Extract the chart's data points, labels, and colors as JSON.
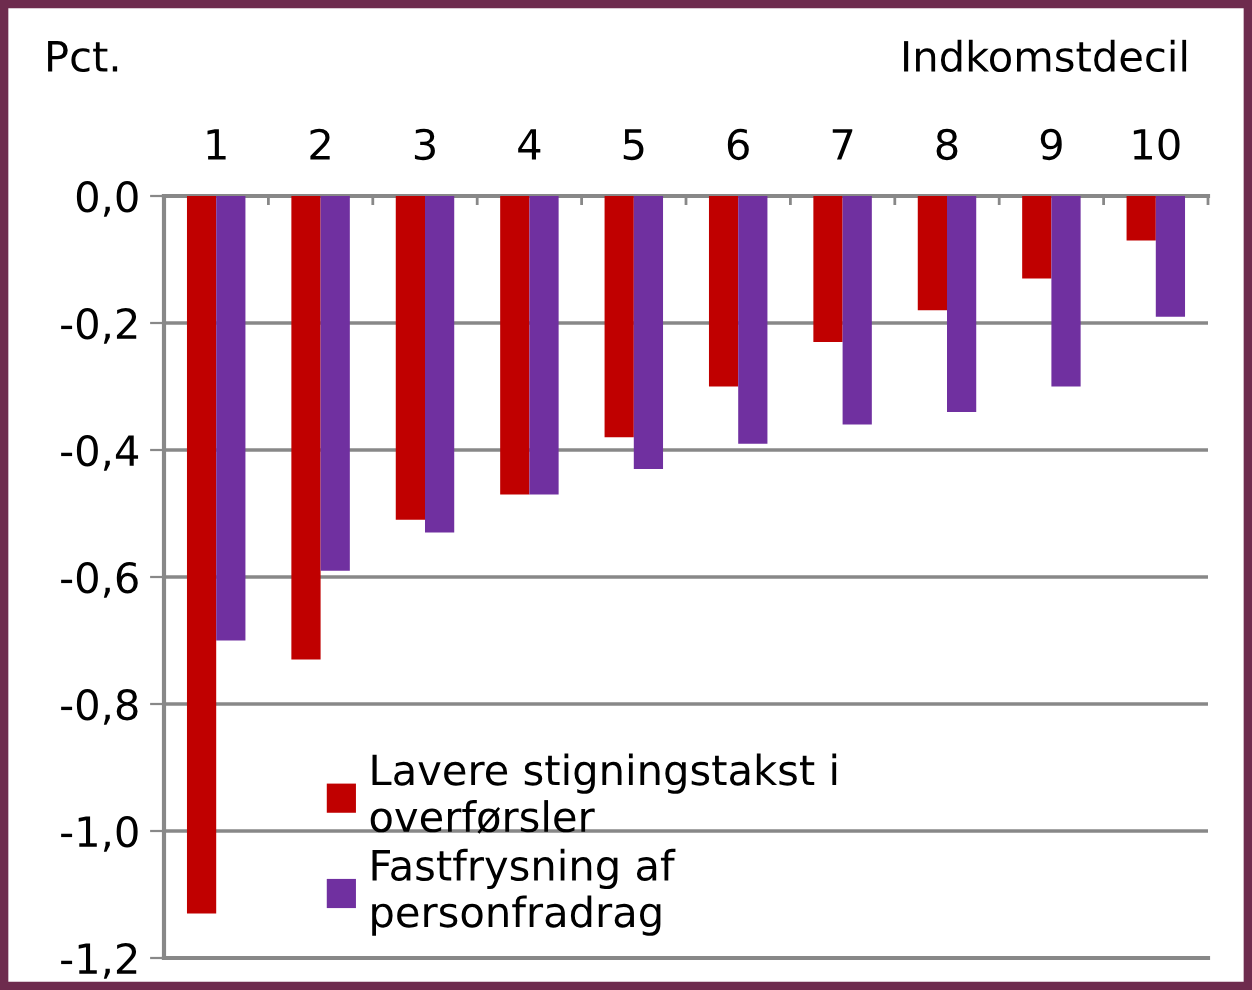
{
  "chart_data": {
    "type": "bar",
    "xlabel": "Indkomstdecil",
    "ylabel": "Pct.",
    "categories": [
      "1",
      "2",
      "3",
      "4",
      "5",
      "6",
      "7",
      "8",
      "9",
      "10"
    ],
    "series": [
      {
        "name": "Lavere stigningstakst i\noverførsler",
        "color": "#c00000",
        "values": [
          -1.13,
          -0.73,
          -0.51,
          -0.47,
          -0.38,
          -0.3,
          -0.23,
          -0.18,
          -0.13,
          -0.07
        ]
      },
      {
        "name": "Fastfrysning af\npersonfradrag",
        "color": "#7030a0",
        "values": [
          -0.7,
          -0.59,
          -0.53,
          -0.47,
          -0.43,
          -0.39,
          -0.36,
          -0.34,
          -0.3,
          -0.19
        ]
      }
    ],
    "ylim": [
      -1.2,
      0
    ],
    "yticks": [
      {
        "value": 0,
        "label": "0,0"
      },
      {
        "value": -0.2,
        "label": "-0,2"
      },
      {
        "value": -0.4,
        "label": "-0,4"
      },
      {
        "value": -0.6,
        "label": "-0,6"
      },
      {
        "value": -0.8,
        "label": "-0,8"
      },
      {
        "value": -1.0,
        "label": "-1,0"
      },
      {
        "value": -1.2,
        "label": "-1,2"
      }
    ],
    "grid": "y",
    "legend": "bottom"
  }
}
